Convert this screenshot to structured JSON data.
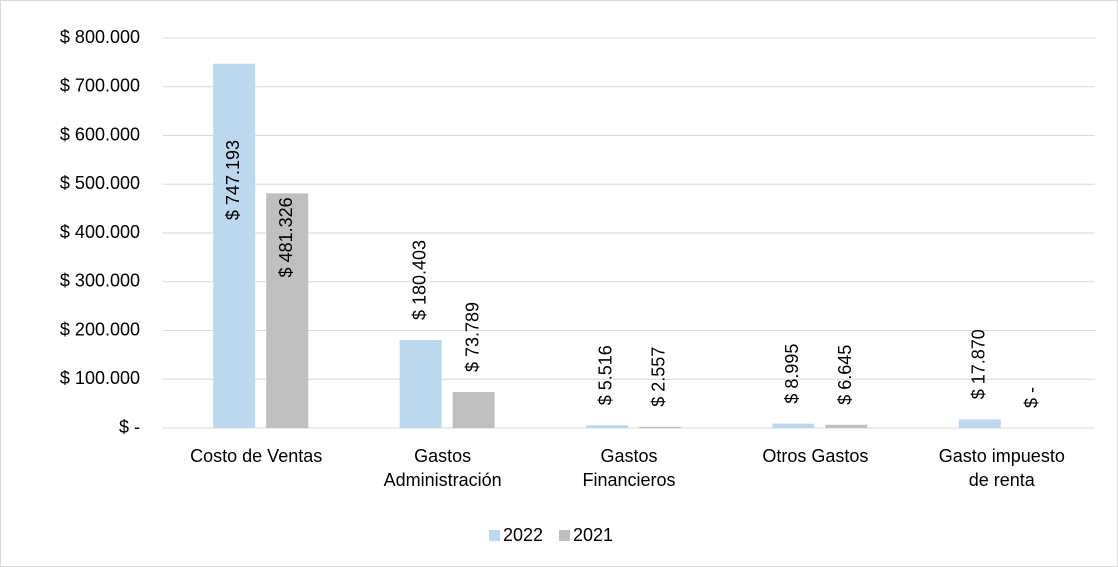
{
  "chart_data": {
    "type": "bar",
    "categories": [
      "Costo de Ventas",
      "Gastos Administración",
      "Gastos Financieros",
      "Otros Gastos",
      "Gasto impuesto de renta"
    ],
    "series": [
      {
        "name": "2022",
        "color": "#bdd7ee",
        "values": [
          747193,
          180403,
          5516,
          8995,
          17870
        ],
        "value_labels": [
          "$ 747.193",
          "$ 180.403",
          "$ 5.516",
          "$ 8.995",
          "$ 17.870"
        ]
      },
      {
        "name": "2021",
        "color": "#bfbfbf",
        "values": [
          481326,
          73789,
          2557,
          6645,
          0
        ],
        "value_labels": [
          "$ 481.326",
          "$ 73.789",
          "$ 2.557",
          "$ 6.645",
          "$ -"
        ]
      }
    ],
    "ylim": [
      0,
      800000
    ],
    "yticks": [
      {
        "value": 0,
        "label": "$ -"
      },
      {
        "value": 100000,
        "label": "$ 100.000"
      },
      {
        "value": 200000,
        "label": "$ 200.000"
      },
      {
        "value": 300000,
        "label": "$ 300.000"
      },
      {
        "value": 400000,
        "label": "$ 400.000"
      },
      {
        "value": 500000,
        "label": "$ 500.000"
      },
      {
        "value": 600000,
        "label": "$ 600.000"
      },
      {
        "value": 700000,
        "label": "$ 700.000"
      },
      {
        "value": 800000,
        "label": "$ 800.000"
      }
    ],
    "grid": true,
    "legend": "bottom"
  }
}
